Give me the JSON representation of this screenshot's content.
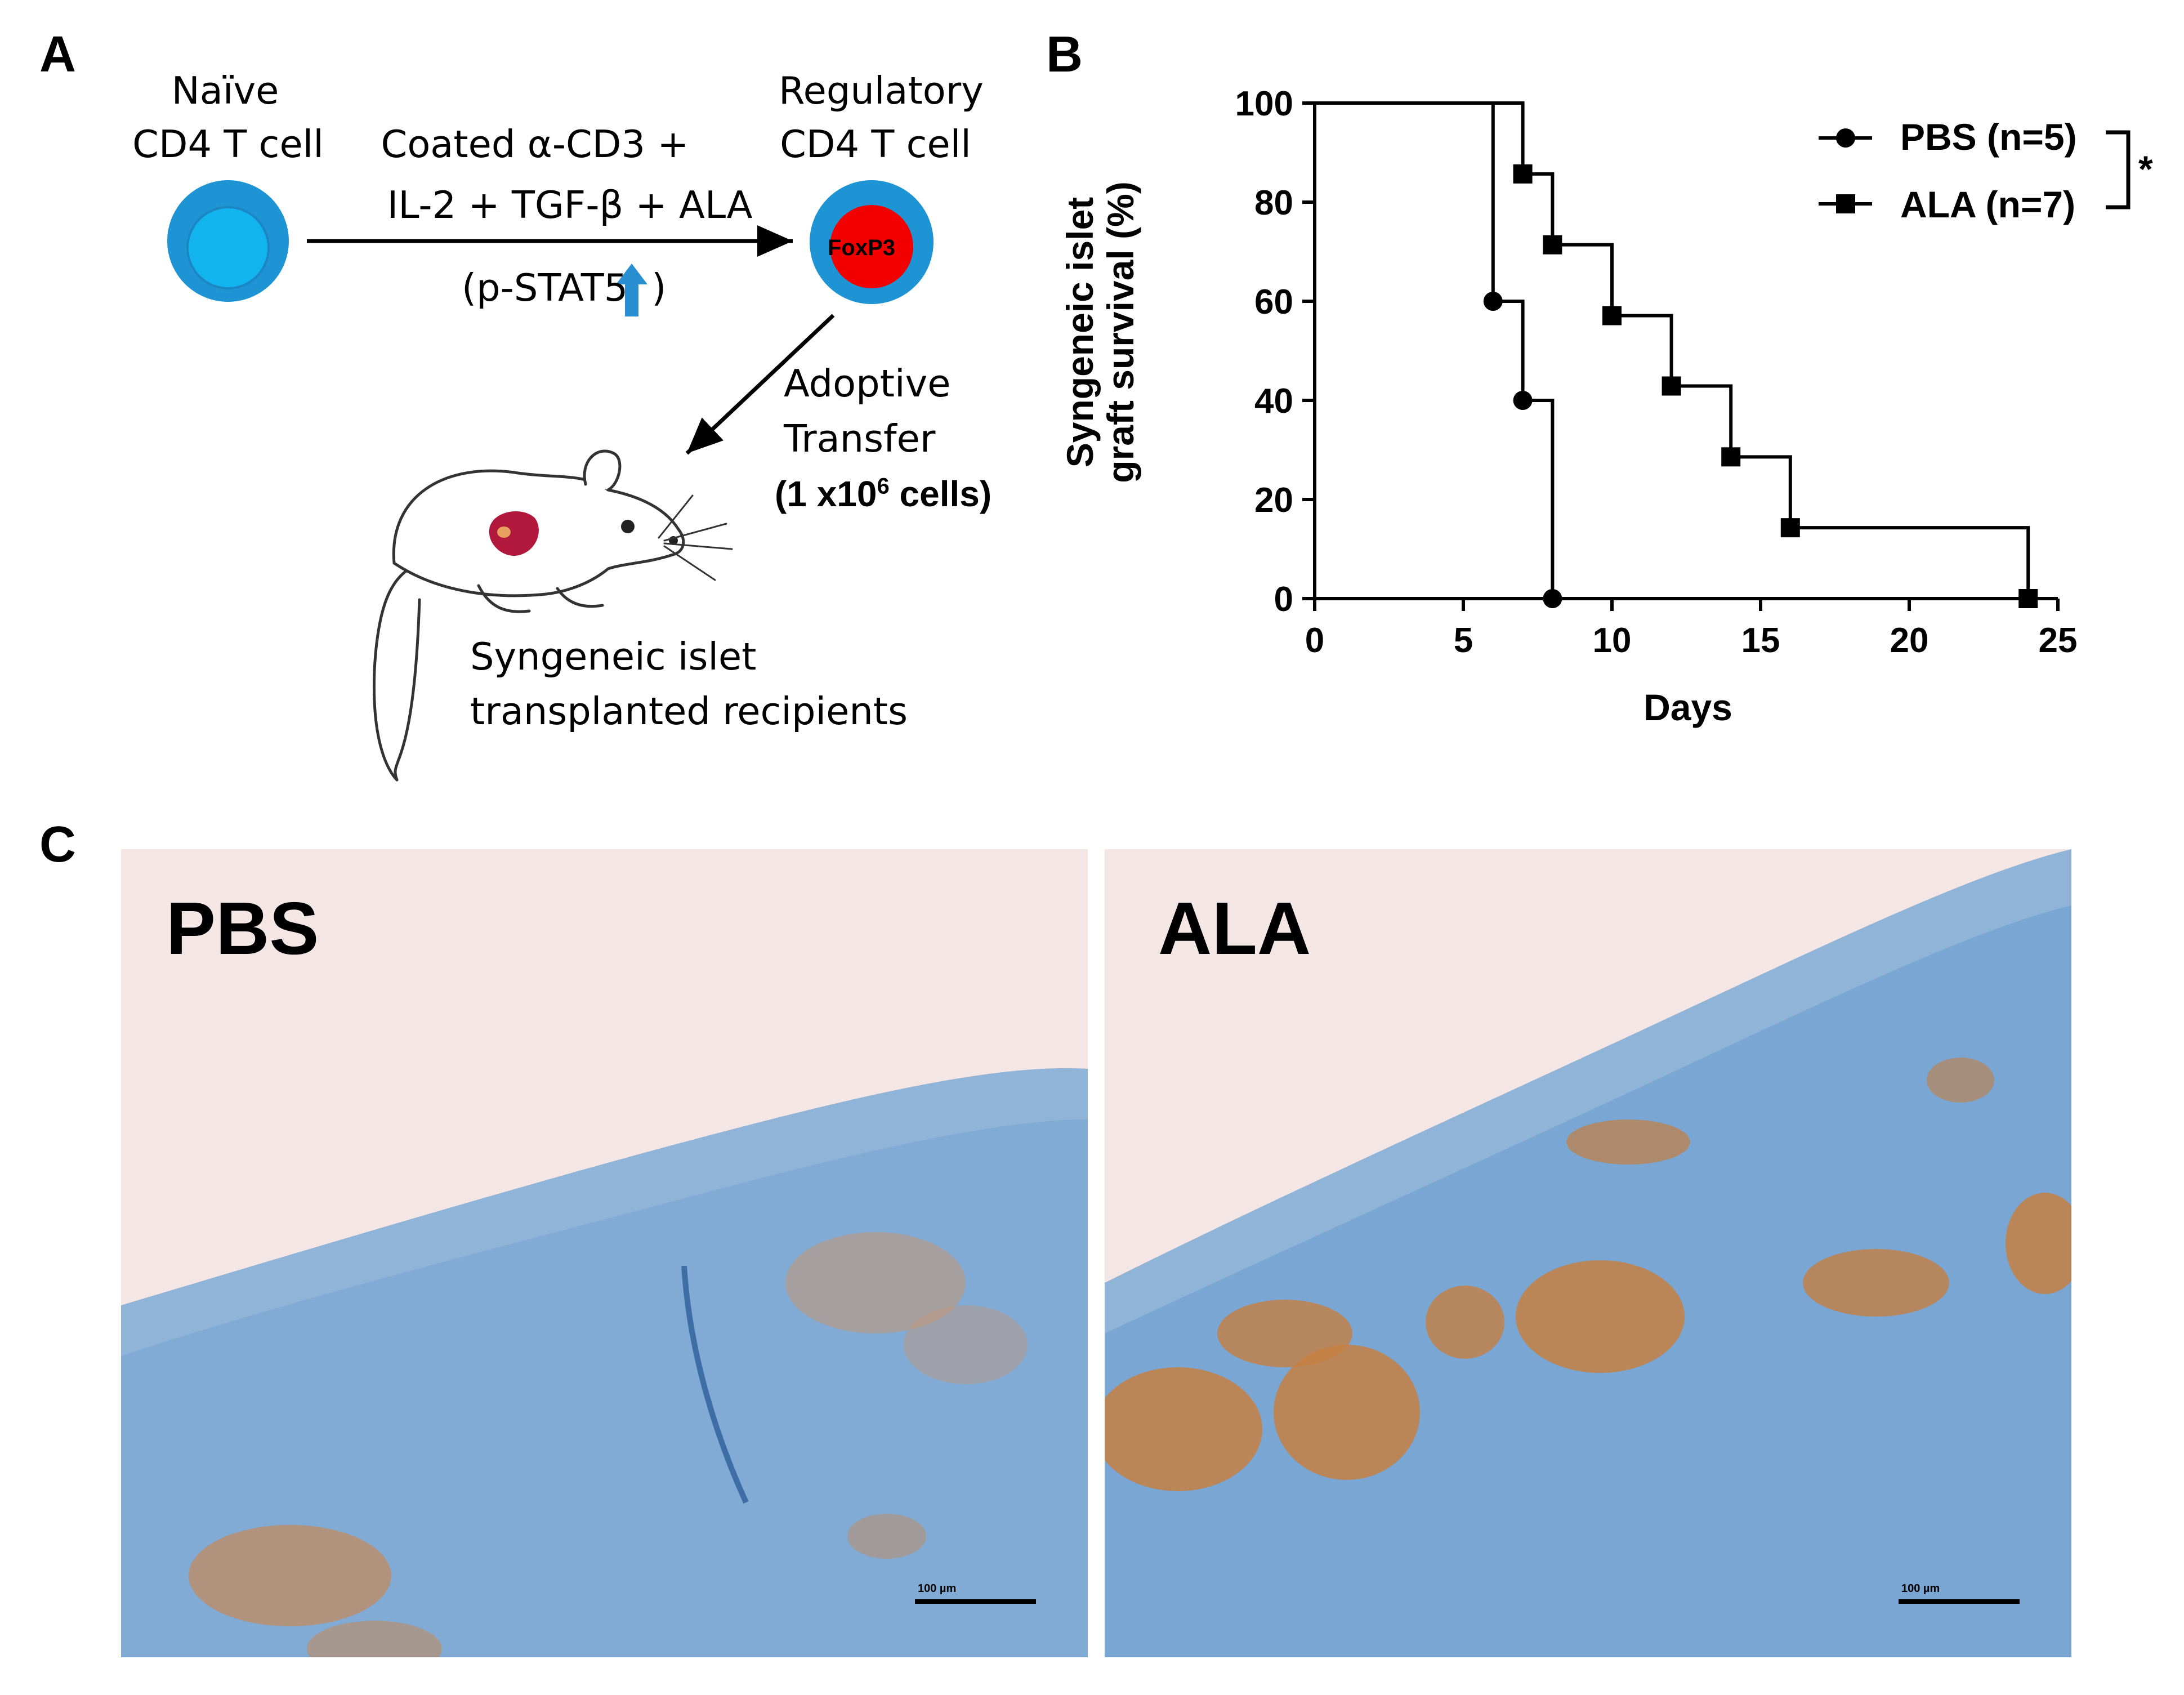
{
  "panels": {
    "a": "A",
    "b": "B",
    "c": "C"
  },
  "schematic": {
    "naive_line1": "Naïve",
    "naive_line2": "CD4 T cell",
    "treatment_line1": "Coated α-CD3 +",
    "treatment_line2": "IL-2 + TGF-β + ALA",
    "pstat_text": "(p-STAT5",
    "pstat_close": ")",
    "treg_line1": "Regulatory",
    "treg_line2": "CD4 T cell",
    "foxp3": "FoxP3",
    "adoptive_line1": "Adoptive",
    "adoptive_line2": "Transfer",
    "cells_prefix": "(1 x10",
    "cells_sup": "6",
    "cells_suffix": " cells)",
    "recipients_line1": "Syngeneic islet",
    "recipients_line2": "transplanted recipients",
    "colors": {
      "cell_outer": "#1f94d4",
      "cell_inner": "#12b4ef",
      "foxp3_red": "#f20000",
      "arrow_blue": "#2a8fd0",
      "islet": "#b2183c"
    },
    "icons": [
      "naive-cell-icon",
      "treg-cell-icon",
      "up-arrow-icon",
      "mouse-icon"
    ]
  },
  "chart_data": {
    "type": "line",
    "subtype": "kaplan-meier step",
    "title": "",
    "xlabel": "Days",
    "ylabel_line1": "Syngeneic islet",
    "ylabel_line2": "graft survival (%)",
    "xlim": [
      0,
      25
    ],
    "ylim": [
      0,
      100
    ],
    "xticks": [
      0,
      5,
      10,
      15,
      20,
      25
    ],
    "yticks": [
      0,
      20,
      40,
      60,
      80,
      100
    ],
    "legend_position": "top-right",
    "significance": "*",
    "series": [
      {
        "name": "PBS (n=5)",
        "marker": "circle",
        "x": [
          0,
          6,
          7,
          8
        ],
        "y": [
          100,
          60,
          40,
          0
        ]
      },
      {
        "name": "ALA (n=7)",
        "marker": "square",
        "x": [
          0,
          7,
          8,
          10,
          12,
          14,
          16,
          24
        ],
        "y": [
          100,
          85.7,
          71.4,
          57.1,
          42.9,
          28.6,
          14.3,
          0
        ]
      }
    ]
  },
  "micrographs": {
    "left_label": "PBS",
    "right_label": "ALA",
    "scale_bar": "100 µm",
    "colors": {
      "background": "#f4e8e6",
      "tissue": "#8fb3d8",
      "islet": "#c4844e"
    }
  }
}
